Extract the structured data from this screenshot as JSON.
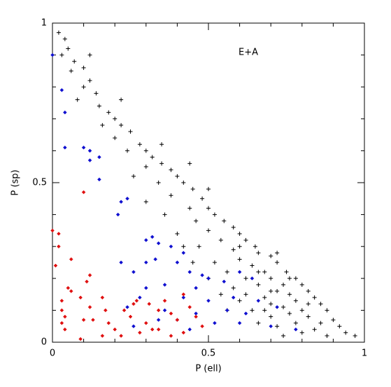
{
  "chart_data": {
    "type": "scatter",
    "annotation": "E+A",
    "x_label": "P (ell)",
    "y_label": "P (sp)",
    "xlim": [
      0,
      1
    ],
    "ylim": [
      0,
      1
    ],
    "xticks": [
      0,
      0.5,
      1
    ],
    "yticks": [
      0,
      0.5,
      1
    ],
    "xminorticks": [
      0.1,
      0.2,
      0.3,
      0.4,
      0.6,
      0.7,
      0.8,
      0.9
    ],
    "yminorticks": [
      0.1,
      0.2,
      0.3,
      0.4,
      0.6,
      0.7,
      0.8,
      0.9
    ],
    "series": [
      {
        "color": "#000000",
        "marker": "plus",
        "x": [
          0.02,
          0.04,
          0.05,
          0.03,
          0.07,
          0.06,
          0.1,
          0.12,
          0.1,
          0.14,
          0.08,
          0.15,
          0.18,
          0.2,
          0.16,
          0.22,
          0.25,
          0.2,
          0.28,
          0.3,
          0.24,
          0.32,
          0.35,
          0.3,
          0.38,
          0.4,
          0.34,
          0.42,
          0.45,
          0.38,
          0.48,
          0.3,
          0.44,
          0.5,
          0.52,
          0.36,
          0.46,
          0.55,
          0.58,
          0.5,
          0.4,
          0.6,
          0.62,
          0.54,
          0.47,
          0.65,
          0.58,
          0.66,
          0.7,
          0.6,
          0.52,
          0.72,
          0.64,
          0.68,
          0.75,
          0.56,
          0.7,
          0.78,
          0.62,
          0.74,
          0.8,
          0.66,
          0.58,
          0.72,
          0.82,
          0.76,
          0.68,
          0.84,
          0.78,
          0.6,
          0.7,
          0.86,
          0.74,
          0.8,
          0.64,
          0.88,
          0.76,
          0.82,
          0.7,
          0.9,
          0.78,
          0.86,
          0.66,
          0.72,
          0.92,
          0.84,
          0.8,
          0.94,
          0.88,
          0.97,
          0.74,
          0.56,
          0.54,
          0.5,
          0.45,
          0.42,
          0.35,
          0.26,
          0.22,
          0.12,
          0.44,
          0.5,
          0.6,
          0.72,
          0.62,
          0.68,
          0.76,
          0.82,
          0.7,
          0.66
        ],
        "y": [
          0.97,
          0.95,
          0.92,
          0.9,
          0.88,
          0.85,
          0.86,
          0.82,
          0.8,
          0.78,
          0.76,
          0.74,
          0.72,
          0.7,
          0.68,
          0.68,
          0.66,
          0.64,
          0.62,
          0.6,
          0.6,
          0.58,
          0.56,
          0.55,
          0.54,
          0.52,
          0.5,
          0.5,
          0.48,
          0.46,
          0.45,
          0.44,
          0.42,
          0.42,
          0.4,
          0.4,
          0.38,
          0.38,
          0.36,
          0.35,
          0.34,
          0.34,
          0.32,
          0.32,
          0.3,
          0.3,
          0.29,
          0.28,
          0.27,
          0.26,
          0.25,
          0.25,
          0.24,
          0.22,
          0.22,
          0.22,
          0.2,
          0.2,
          0.2,
          0.18,
          0.18,
          0.18,
          0.17,
          0.16,
          0.16,
          0.15,
          0.14,
          0.14,
          0.13,
          0.13,
          0.12,
          0.12,
          0.11,
          0.1,
          0.1,
          0.1,
          0.09,
          0.08,
          0.08,
          0.07,
          0.06,
          0.06,
          0.06,
          0.05,
          0.05,
          0.04,
          0.03,
          0.03,
          0.02,
          0.02,
          0.02,
          0.1,
          0.15,
          0.2,
          0.25,
          0.3,
          0.62,
          0.52,
          0.76,
          0.9,
          0.56,
          0.48,
          0.3,
          0.28,
          0.15,
          0.1,
          0.2,
          0.12,
          0.16,
          0.22
        ]
      },
      {
        "color": "#1010d0",
        "marker": "diamond",
        "x": [
          0,
          0.03,
          0.04,
          0.04,
          0.1,
          0.12,
          0.12,
          0.15,
          0.15,
          0.22,
          0.24,
          0.21,
          0.32,
          0.3,
          0.34,
          0.38,
          0.42,
          0.22,
          0.3,
          0.4,
          0.33,
          0.26,
          0.44,
          0.48,
          0.5,
          0.3,
          0.36,
          0.46,
          0.55,
          0.6,
          0.64,
          0.28,
          0.42,
          0.5,
          0.58,
          0.66,
          0.24,
          0.36,
          0.46,
          0.56,
          0.62,
          0.72,
          0.34,
          0.4,
          0.52,
          0.6,
          0.7,
          0.78,
          0.44,
          0.26
        ],
        "y": [
          0.9,
          0.79,
          0.72,
          0.61,
          0.61,
          0.6,
          0.57,
          0.58,
          0.51,
          0.44,
          0.45,
          0.4,
          0.33,
          0.32,
          0.31,
          0.3,
          0.28,
          0.25,
          0.25,
          0.25,
          0.26,
          0.22,
          0.22,
          0.21,
          0.2,
          0.17,
          0.18,
          0.17,
          0.19,
          0.22,
          0.2,
          0.14,
          0.14,
          0.13,
          0.14,
          0.13,
          0.11,
          0.1,
          0.09,
          0.1,
          0.09,
          0.11,
          0.07,
          0.07,
          0.06,
          0.06,
          0.05,
          0.04,
          0.04,
          0.05
        ]
      },
      {
        "color": "#e01010",
        "marker": "diamond",
        "x": [
          0,
          0.02,
          0.02,
          0.01,
          0.06,
          0.1,
          0.05,
          0.06,
          0.12,
          0.11,
          0.03,
          0.03,
          0.04,
          0.03,
          0.04,
          0.09,
          0.12,
          0.1,
          0.13,
          0.16,
          0.17,
          0.18,
          0.16,
          0.23,
          0.2,
          0.25,
          0.27,
          0.28,
          0.3,
          0.32,
          0.34,
          0.36,
          0.38,
          0.4,
          0.34,
          0.42,
          0.44,
          0.46,
          0.48,
          0.42,
          0.26,
          0.31,
          0.38,
          0.22,
          0.09
        ],
        "y": [
          0.35,
          0.34,
          0.3,
          0.24,
          0.26,
          0.47,
          0.17,
          0.16,
          0.21,
          0.19,
          0.13,
          0.1,
          0.08,
          0.06,
          0.04,
          0.14,
          0.11,
          0.07,
          0.07,
          0.14,
          0.1,
          0.06,
          0.02,
          0.1,
          0.04,
          0.08,
          0.13,
          0.03,
          0.06,
          0.04,
          0.1,
          0.13,
          0.09,
          0.07,
          0.04,
          0.15,
          0.11,
          0.08,
          0.05,
          0.03,
          0.12,
          0.12,
          0.02,
          0.02,
          0.01
        ]
      }
    ]
  }
}
